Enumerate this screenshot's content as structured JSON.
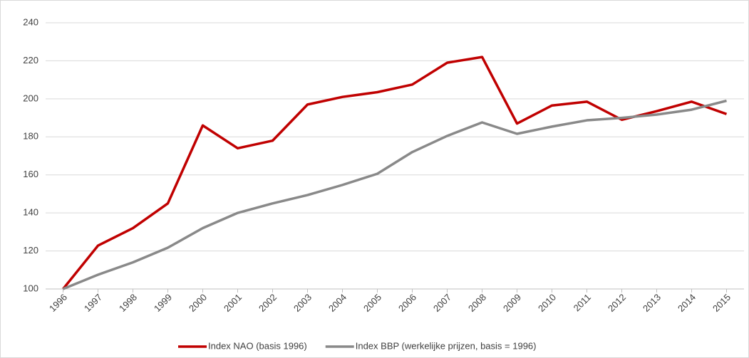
{
  "chart_data": {
    "type": "line",
    "categories": [
      "1996",
      "1997",
      "1998",
      "1999",
      "2000",
      "2001",
      "2002",
      "2003",
      "2004",
      "2005",
      "2006",
      "2007",
      "2008",
      "2009",
      "2010",
      "2011",
      "2012",
      "2013",
      "2014",
      "2015"
    ],
    "series": [
      {
        "name": "Index NAO (basis 1996)",
        "color": "#c00000",
        "values": [
          100,
          122.8,
          132,
          145,
          186,
          174,
          178,
          197,
          201,
          203.5,
          207.5,
          219,
          222,
          187,
          196.5,
          198.5,
          189,
          193.5,
          198.5,
          192
        ]
      },
      {
        "name": "Index BBP (werkelijke prijzen, basis = 1996)",
        "color": "#898989",
        "values": [
          100,
          107.5,
          114,
          121.7,
          132,
          140,
          145,
          149.4,
          154.7,
          160.6,
          172,
          180.5,
          187.6,
          181.6,
          185.4,
          188.7,
          190,
          191.7,
          194.3,
          199
        ]
      }
    ],
    "ylim": [
      100,
      240
    ],
    "yticks": [
      100,
      120,
      140,
      160,
      180,
      200,
      220,
      240
    ],
    "grid": true,
    "legend": "bottom"
  }
}
